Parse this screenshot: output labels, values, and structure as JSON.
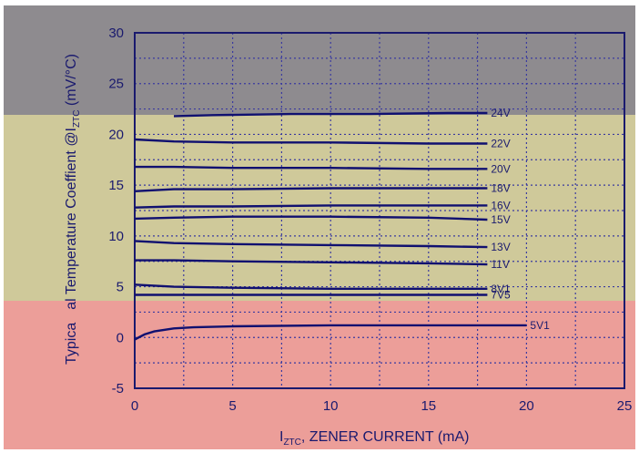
{
  "chart_data": {
    "type": "line",
    "xlabel": "I_ZTC, ZENER CURRENT (mA)",
    "xlabel_main": "I",
    "xlabel_sub": "ZTC",
    "xlabel_rest": ", ZENER CURRENT (mA)",
    "ylabel": "Typical Temperature Coeffient @I_ZTC (mV/°C)",
    "ylabel_visible": "al Temperature Coeffient @I",
    "ylabel_sub": "ZTC",
    "ylabel_units": " (mV/°C)",
    "xlim": [
      0,
      25
    ],
    "ylim": [
      -5,
      30
    ],
    "xticks": [
      "0",
      "5",
      "10",
      "15",
      "20",
      "25"
    ],
    "yticks": [
      "-5",
      "0",
      "5",
      "10",
      "15",
      "20",
      "25",
      "30"
    ],
    "grid": true,
    "series": [
      {
        "name": "24V",
        "x": [
          2,
          4,
          8,
          12,
          16,
          18
        ],
        "y": [
          21.8,
          21.9,
          22.0,
          22.0,
          22.1,
          22.1
        ]
      },
      {
        "name": "22V",
        "x": [
          0,
          2,
          5,
          10,
          15,
          18
        ],
        "y": [
          19.5,
          19.3,
          19.2,
          19.2,
          19.1,
          19.1
        ]
      },
      {
        "name": "20V",
        "x": [
          0,
          2,
          5,
          10,
          15,
          18
        ],
        "y": [
          16.8,
          16.8,
          16.7,
          16.7,
          16.6,
          16.6
        ]
      },
      {
        "name": "18V",
        "x": [
          0,
          2,
          5,
          10,
          15,
          18
        ],
        "y": [
          14.4,
          14.6,
          14.6,
          14.7,
          14.7,
          14.7
        ]
      },
      {
        "name": "16V",
        "x": [
          0,
          2,
          5,
          10,
          15,
          18
        ],
        "y": [
          12.8,
          12.9,
          12.9,
          13.0,
          13.0,
          13.0
        ]
      },
      {
        "name": "15V",
        "x": [
          0,
          2,
          5,
          10,
          15,
          18
        ],
        "y": [
          11.7,
          11.8,
          11.9,
          11.9,
          11.8,
          11.6
        ]
      },
      {
        "name": "13V",
        "x": [
          0,
          2,
          5,
          10,
          15,
          18
        ],
        "y": [
          9.5,
          9.3,
          9.2,
          9.1,
          9.0,
          8.9
        ]
      },
      {
        "name": "11V",
        "x": [
          0,
          2,
          5,
          10,
          15,
          18
        ],
        "y": [
          7.6,
          7.6,
          7.5,
          7.4,
          7.3,
          7.2
        ]
      },
      {
        "name": "8V1",
        "x": [
          0,
          2,
          5,
          10,
          15,
          18
        ],
        "y": [
          5.2,
          5.0,
          4.9,
          4.8,
          4.8,
          4.8
        ]
      },
      {
        "name": "7V5",
        "x": [
          0,
          2,
          5,
          10,
          15,
          18
        ],
        "y": [
          4.2,
          4.2,
          4.2,
          4.2,
          4.2,
          4.2
        ]
      },
      {
        "name": "5V1",
        "x": [
          0,
          0.5,
          1,
          2,
          3,
          5,
          10,
          15,
          20
        ],
        "y": [
          -0.2,
          0.3,
          0.6,
          0.9,
          1.0,
          1.1,
          1.2,
          1.2,
          1.2
        ]
      }
    ]
  }
}
